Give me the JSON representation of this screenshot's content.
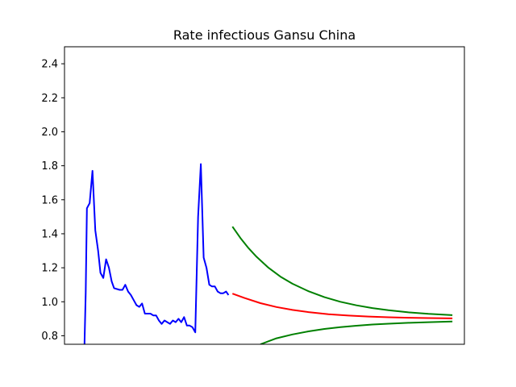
{
  "chart_data": {
    "type": "line",
    "title": "Rate infectious Gansu China",
    "xlabel": "",
    "ylabel": "",
    "x_ticks_visible": false,
    "xlim": [
      -1,
      99
    ],
    "ylim": [
      0.75,
      2.5
    ],
    "y_ticks": [
      0.8,
      1.0,
      1.2,
      1.4,
      1.6,
      1.8,
      2.0,
      2.2,
      2.4
    ],
    "grid": false,
    "legend": "none",
    "series": [
      {
        "color": "#0000ff",
        "points": [
          [
            4,
            0.75
          ],
          [
            4.3,
            1.05
          ],
          [
            4.6,
            1.55
          ],
          [
            5.3,
            1.58
          ],
          [
            6,
            1.77
          ],
          [
            6.7,
            1.42
          ],
          [
            7.4,
            1.3
          ],
          [
            8,
            1.17
          ],
          [
            8.7,
            1.14
          ],
          [
            9.4,
            1.25
          ],
          [
            10.1,
            1.2
          ],
          [
            10.8,
            1.12
          ],
          [
            11.4,
            1.08
          ],
          [
            12.8,
            1.07
          ],
          [
            13.5,
            1.07
          ],
          [
            14.2,
            1.1
          ],
          [
            14.9,
            1.06
          ],
          [
            15.6,
            1.04
          ],
          [
            16.3,
            1.01
          ],
          [
            17,
            0.98
          ],
          [
            17.7,
            0.97
          ],
          [
            18.4,
            0.99
          ],
          [
            19.1,
            0.93
          ],
          [
            19.8,
            0.93
          ],
          [
            20.5,
            0.93
          ],
          [
            21.2,
            0.92
          ],
          [
            21.9,
            0.92
          ],
          [
            22.6,
            0.89
          ],
          [
            23.3,
            0.87
          ],
          [
            24,
            0.89
          ],
          [
            24.7,
            0.88
          ],
          [
            25.4,
            0.87
          ],
          [
            26.1,
            0.89
          ],
          [
            26.8,
            0.88
          ],
          [
            27.5,
            0.9
          ],
          [
            28.2,
            0.88
          ],
          [
            28.9,
            0.91
          ],
          [
            29.6,
            0.86
          ],
          [
            30.3,
            0.86
          ],
          [
            31,
            0.85
          ],
          [
            31.7,
            0.82
          ],
          [
            32.4,
            1.5
          ],
          [
            33.1,
            1.81
          ],
          [
            33.8,
            1.26
          ],
          [
            34.5,
            1.2
          ],
          [
            35.2,
            1.1
          ],
          [
            35.9,
            1.09
          ],
          [
            36.6,
            1.09
          ],
          [
            37.3,
            1.06
          ],
          [
            38,
            1.05
          ],
          [
            38.7,
            1.05
          ],
          [
            39.4,
            1.06
          ],
          [
            40,
            1.04
          ]
        ]
      },
      {
        "color": "#ff0000",
        "points": [
          [
            41,
            1.048
          ],
          [
            44,
            1.022
          ],
          [
            48,
            0.992
          ],
          [
            52,
            0.969
          ],
          [
            56,
            0.952
          ],
          [
            60,
            0.939
          ],
          [
            65,
            0.927
          ],
          [
            70,
            0.919
          ],
          [
            75,
            0.913
          ],
          [
            80,
            0.909
          ],
          [
            85,
            0.906
          ],
          [
            90,
            0.904
          ],
          [
            96,
            0.902
          ]
        ]
      },
      {
        "color": "#008000",
        "points": [
          [
            41,
            1.442
          ],
          [
            43,
            1.375
          ],
          [
            45,
            1.316
          ],
          [
            47,
            1.265
          ],
          [
            50,
            1.2
          ],
          [
            53,
            1.148
          ],
          [
            56,
            1.106
          ],
          [
            60,
            1.062
          ],
          [
            64,
            1.027
          ],
          [
            68,
            1.0
          ],
          [
            72,
            0.979
          ],
          [
            76,
            0.963
          ],
          [
            80,
            0.95
          ],
          [
            85,
            0.938
          ],
          [
            90,
            0.929
          ],
          [
            96,
            0.921
          ]
        ]
      },
      {
        "color": "#008000",
        "points": [
          [
            48,
            0.75
          ],
          [
            52,
            0.785
          ],
          [
            56,
            0.808
          ],
          [
            60,
            0.826
          ],
          [
            64,
            0.84
          ],
          [
            68,
            0.851
          ],
          [
            72,
            0.859
          ],
          [
            76,
            0.866
          ],
          [
            80,
            0.871
          ],
          [
            85,
            0.876
          ],
          [
            90,
            0.88
          ],
          [
            96,
            0.884
          ]
        ]
      }
    ]
  }
}
